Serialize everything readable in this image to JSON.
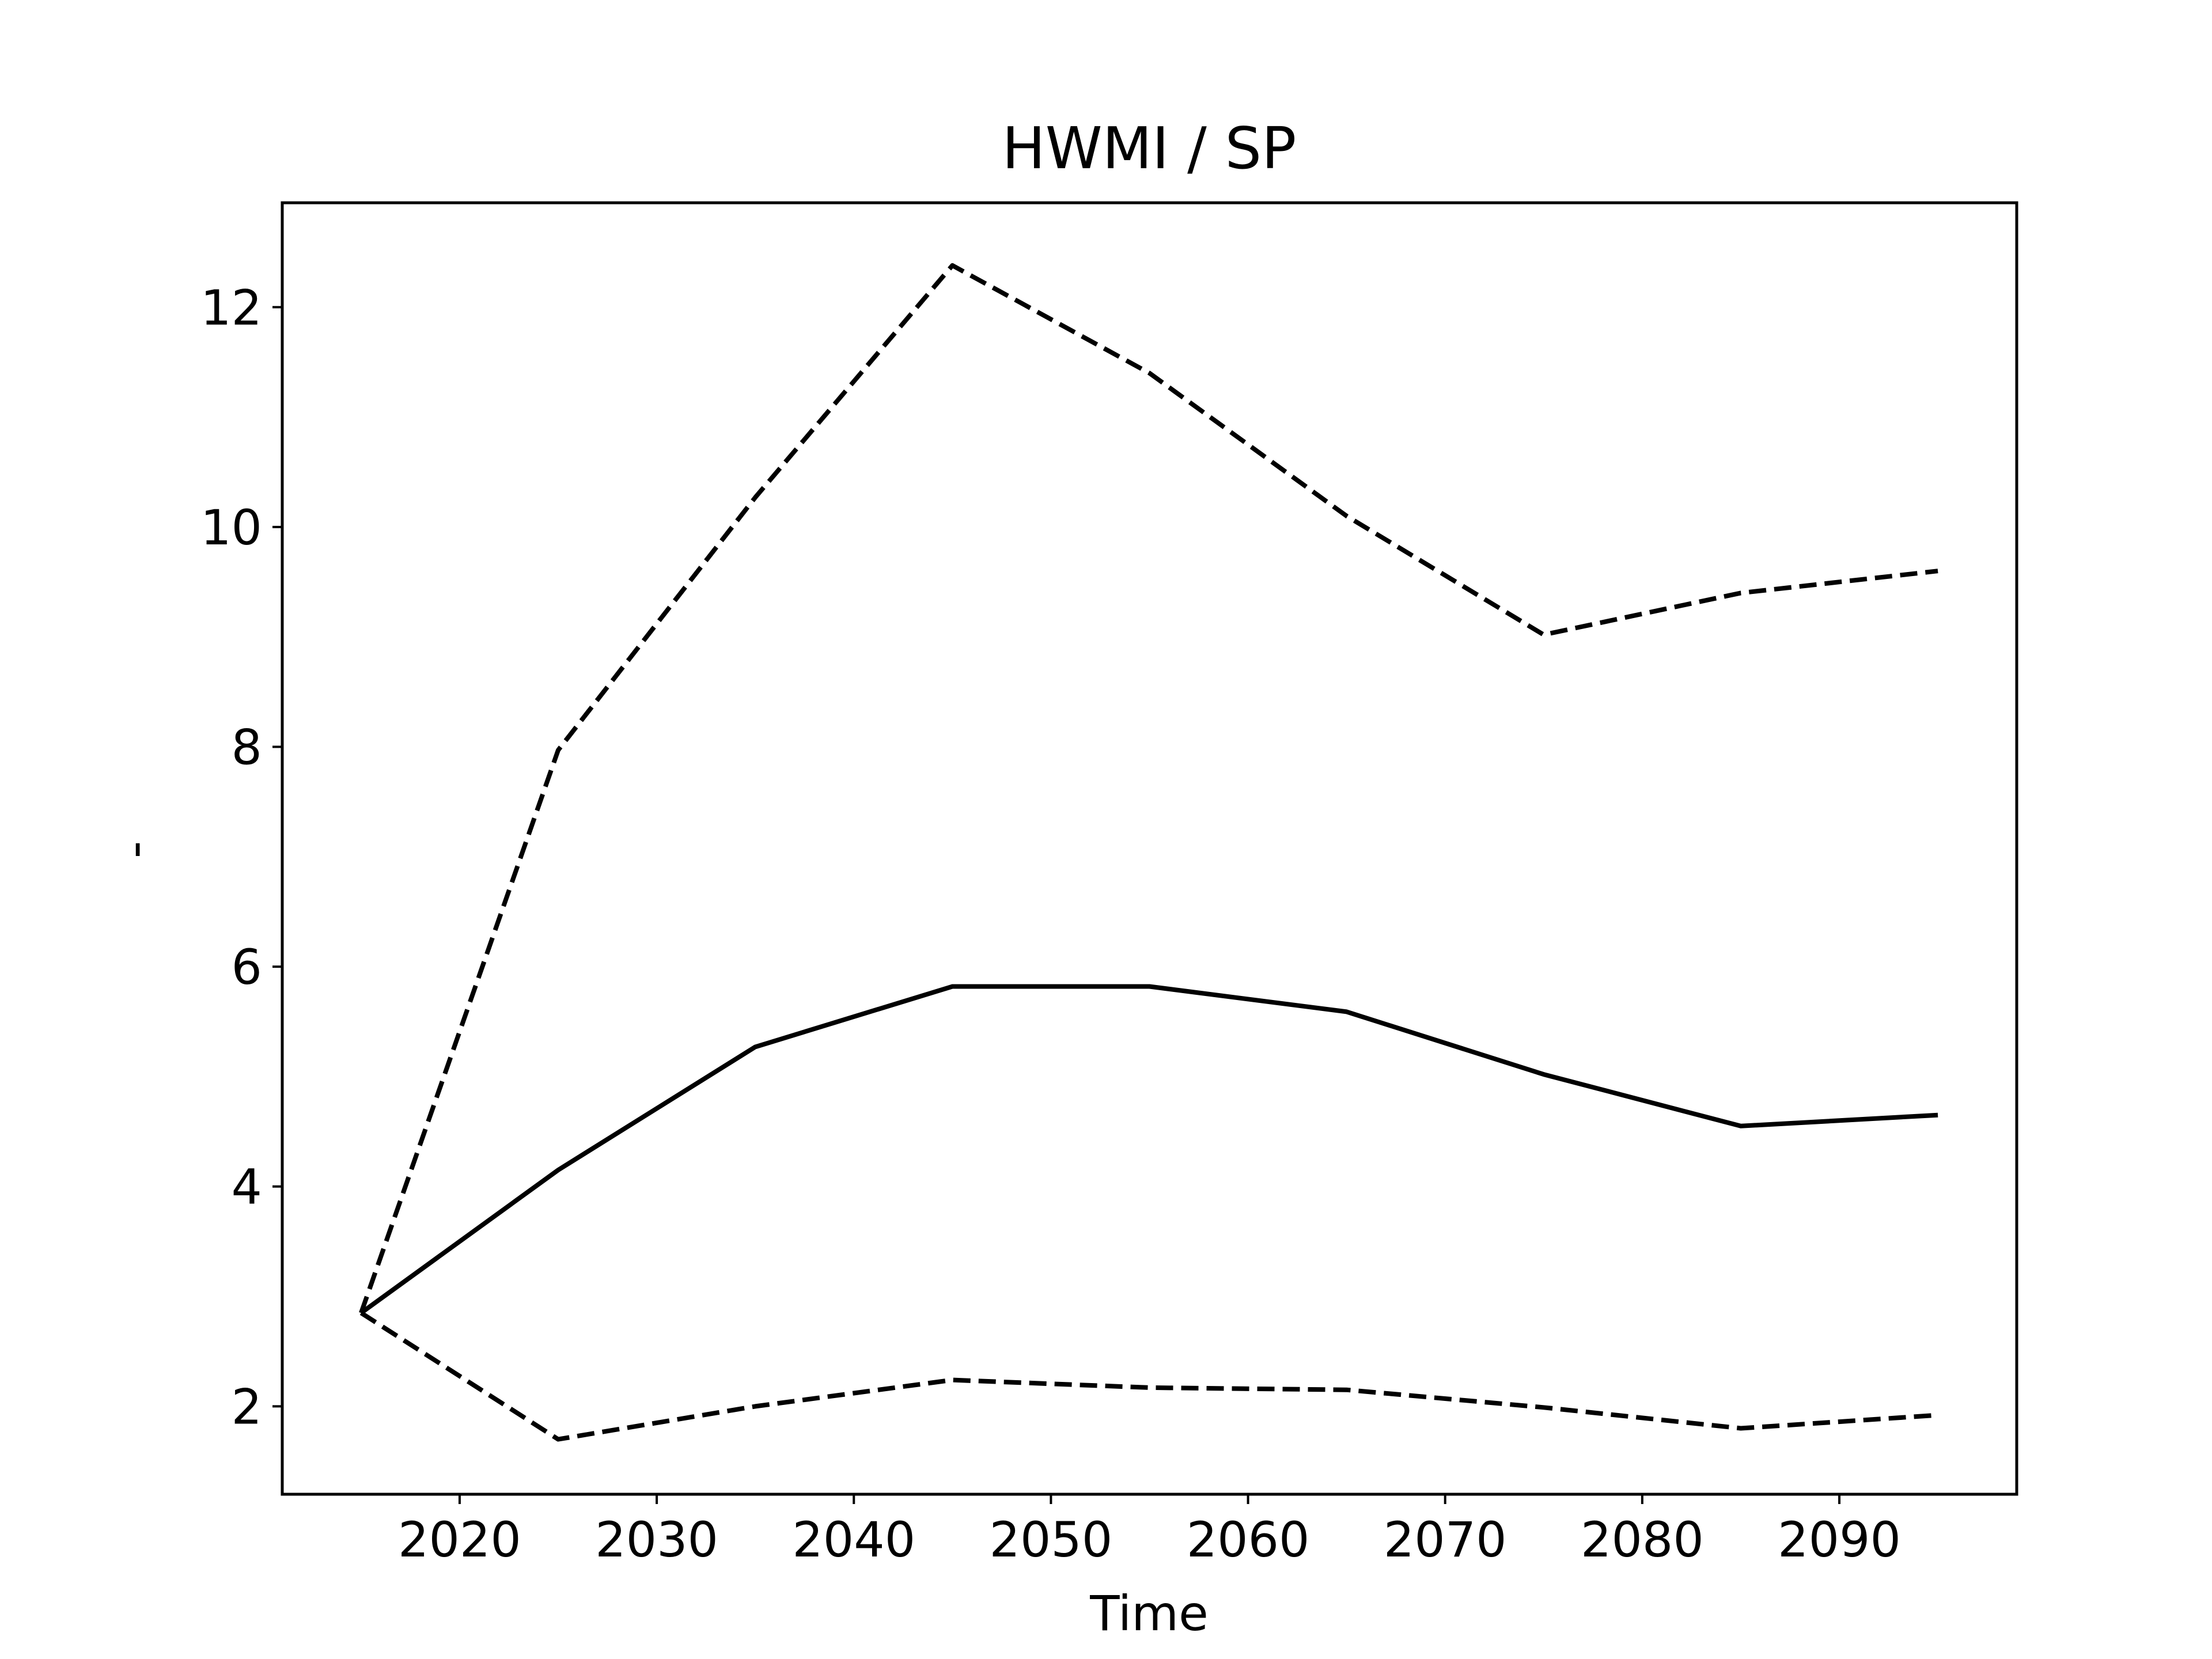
{
  "chart_data": {
    "type": "line",
    "title": "HWMI / SP",
    "xlabel": "Time",
    "ylabel": "-",
    "x": [
      2015,
      2025,
      2035,
      2045,
      2055,
      2065,
      2075,
      2085,
      2095
    ],
    "series": [
      {
        "values": [
          2.85,
          4.15,
          5.27,
          5.82,
          5.82,
          5.59,
          5.02,
          4.55,
          4.65
        ],
        "style": "solid"
      },
      {
        "values": [
          2.85,
          7.97,
          10.27,
          12.38,
          11.4,
          10.1,
          9.02,
          9.4,
          9.6
        ],
        "style": "dashed"
      },
      {
        "values": [
          2.85,
          1.7,
          2.0,
          2.24,
          2.17,
          2.15,
          1.99,
          1.8,
          1.92
        ],
        "style": "dashed"
      }
    ],
    "xlim": [
      2011,
      2099
    ],
    "ylim": [
      1.2,
      12.95
    ],
    "xticks": [
      "2020",
      "2030",
      "2040",
      "2050",
      "2060",
      "2070",
      "2080",
      "2090"
    ],
    "yticks": [
      "2",
      "4",
      "6",
      "8",
      "10",
      "12"
    ],
    "grid": false,
    "legend": "none",
    "line_color": "#000000"
  }
}
